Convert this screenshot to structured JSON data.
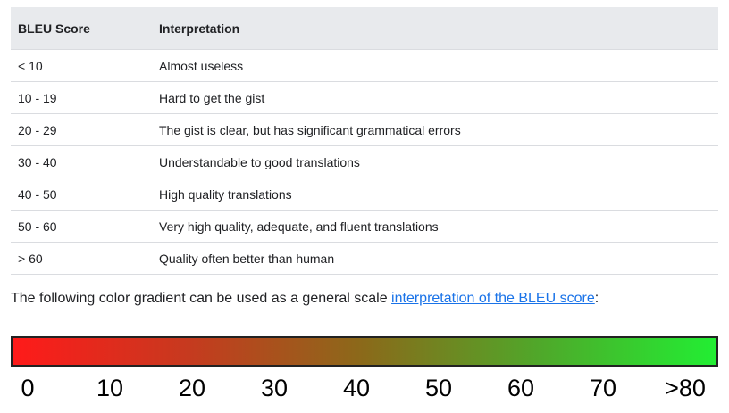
{
  "table": {
    "headers": {
      "score": "BLEU Score",
      "interpretation": "Interpretation"
    },
    "rows": [
      {
        "score": "< 10",
        "interpretation": "Almost useless"
      },
      {
        "score": "10 - 19",
        "interpretation": "Hard to get the gist"
      },
      {
        "score": "20 - 29",
        "interpretation": "The gist is clear, but has significant grammatical errors"
      },
      {
        "score": "30 - 40",
        "interpretation": "Understandable to good translations"
      },
      {
        "score": "40 - 50",
        "interpretation": "High quality translations"
      },
      {
        "score": "50 - 60",
        "interpretation": "Very high quality, adequate, and fluent translations"
      },
      {
        "score": "> 60",
        "interpretation": "Quality often better than human"
      }
    ]
  },
  "paragraph": {
    "text": "The following color gradient can be used as a general scale ",
    "link_text": "interpretation of the BLEU score",
    "suffix": ":"
  },
  "gradient": {
    "colors": [
      "#ff1a1a",
      "#c63a1f",
      "#8a6a1a",
      "#4fa82a",
      "#22ee33"
    ],
    "tick_labels": [
      "0",
      "10",
      "20",
      "30",
      "40",
      "50",
      "60",
      "70",
      ">80"
    ]
  }
}
